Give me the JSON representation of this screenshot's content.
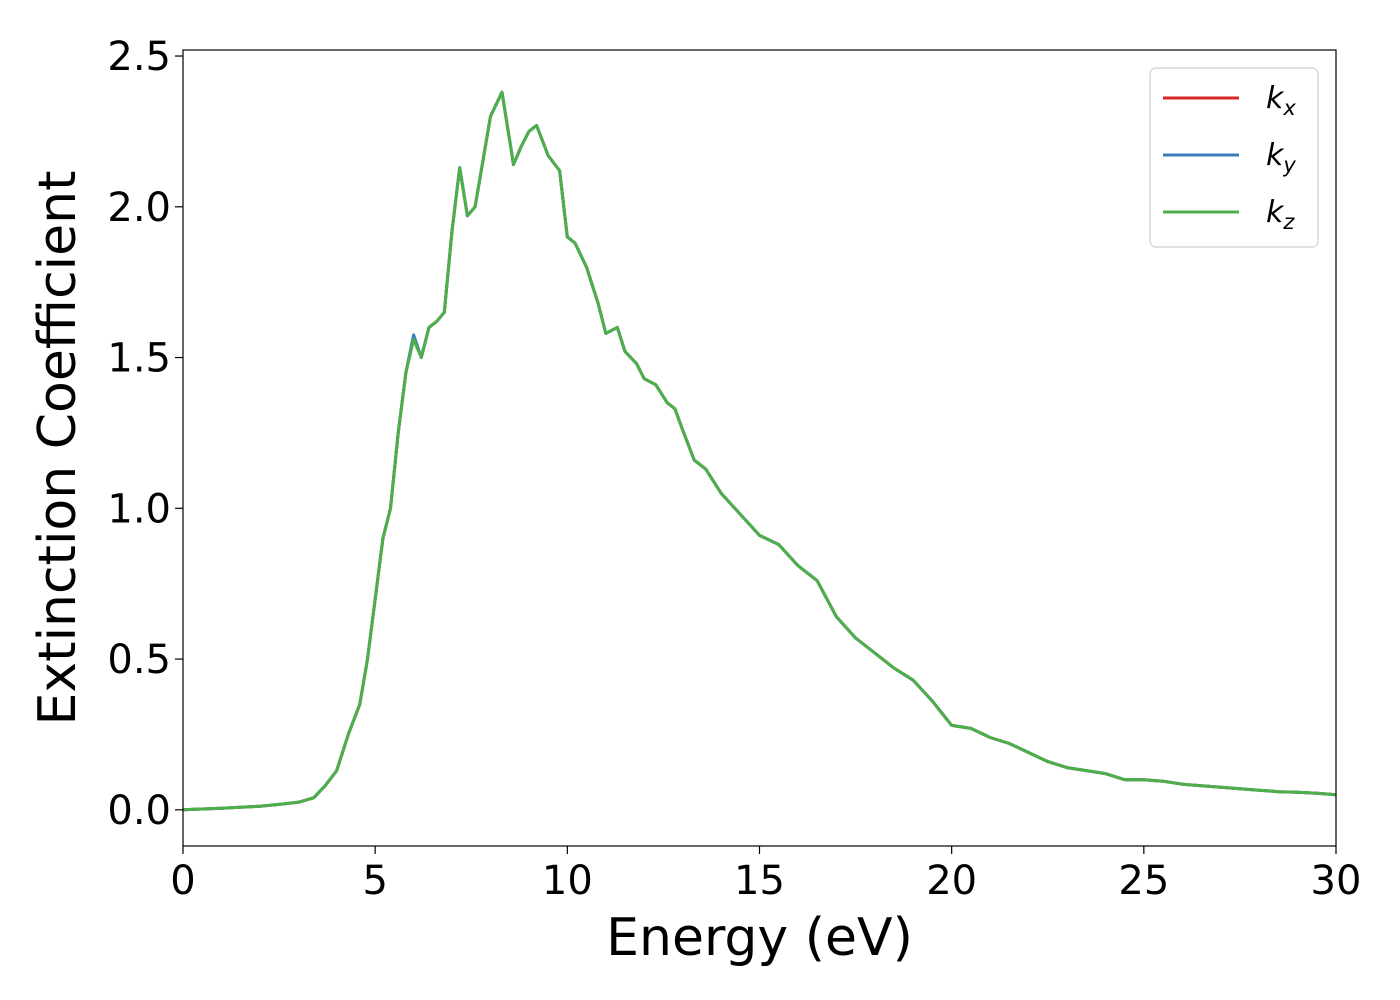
{
  "chart_data": {
    "type": "line",
    "title": "",
    "xlabel": "Energy (eV)",
    "ylabel": "Extinction Coefficient",
    "xlim": [
      0,
      30
    ],
    "ylim": [
      -0.12,
      2.52
    ],
    "xticks": [
      0,
      5,
      10,
      15,
      20,
      25,
      30
    ],
    "xtick_labels": [
      "0",
      "5",
      "10",
      "15",
      "20",
      "25",
      "30"
    ],
    "yticks": [
      0.0,
      0.5,
      1.0,
      1.5,
      2.0,
      2.5
    ],
    "ytick_labels": [
      "0.0",
      "0.5",
      "1.0",
      "1.5",
      "2.0",
      "2.5"
    ],
    "grid": false,
    "legend_position": "top-right",
    "series": [
      {
        "name": "k",
        "subscript": "x",
        "color": "#d62728",
        "x": [
          0,
          1,
          2,
          2.5,
          3,
          3.4,
          3.7,
          4.0,
          4.3,
          4.6,
          4.8,
          5.0,
          5.2,
          5.4,
          5.6,
          5.8,
          6.0,
          6.2,
          6.4,
          6.6,
          6.8,
          7.0,
          7.2,
          7.4,
          7.6,
          7.8,
          8.0,
          8.3,
          8.6,
          8.8,
          9.0,
          9.2,
          9.5,
          9.8,
          10.0,
          10.2,
          10.5,
          10.8,
          11.0,
          11.3,
          11.5,
          11.8,
          12.0,
          12.3,
          12.6,
          12.8,
          13.0,
          13.3,
          13.6,
          14.0,
          14.5,
          15.0,
          15.5,
          16.0,
          16.5,
          17.0,
          17.5,
          18.0,
          18.5,
          19.0,
          19.5,
          20.0,
          20.5,
          21.0,
          21.5,
          22.0,
          22.5,
          23.0,
          23.5,
          24.0,
          24.5,
          25.0,
          25.5,
          26.0,
          26.5,
          27.0,
          27.5,
          28.0,
          28.5,
          29.0,
          29.5,
          30.0
        ],
        "y": [
          0.0,
          0.005,
          0.012,
          0.018,
          0.025,
          0.04,
          0.08,
          0.13,
          0.25,
          0.35,
          0.5,
          0.7,
          0.9,
          1.0,
          1.25,
          1.45,
          1.57,
          1.5,
          1.6,
          1.62,
          1.65,
          1.92,
          2.13,
          1.97,
          2.0,
          2.15,
          2.3,
          2.38,
          2.14,
          2.2,
          2.25,
          2.27,
          2.17,
          2.12,
          1.9,
          1.88,
          1.8,
          1.68,
          1.58,
          1.6,
          1.52,
          1.48,
          1.43,
          1.41,
          1.35,
          1.33,
          1.26,
          1.16,
          1.13,
          1.05,
          0.98,
          0.91,
          0.88,
          0.81,
          0.76,
          0.64,
          0.57,
          0.52,
          0.47,
          0.43,
          0.36,
          0.28,
          0.27,
          0.24,
          0.22,
          0.19,
          0.16,
          0.14,
          0.13,
          0.12,
          0.1,
          0.1,
          0.095,
          0.085,
          0.08,
          0.075,
          0.07,
          0.065,
          0.06,
          0.058,
          0.055,
          0.05
        ]
      },
      {
        "name": "k",
        "subscript": "y",
        "color": "#377eb8",
        "x": [
          0,
          1,
          2,
          2.5,
          3,
          3.4,
          3.7,
          4.0,
          4.3,
          4.6,
          4.8,
          5.0,
          5.2,
          5.4,
          5.6,
          5.8,
          6.0,
          6.2,
          6.4,
          6.6,
          6.8,
          7.0,
          7.2,
          7.4,
          7.6,
          7.8,
          8.0,
          8.3,
          8.6,
          8.8,
          9.0,
          9.2,
          9.5,
          9.8,
          10.0,
          10.2,
          10.5,
          10.8,
          11.0,
          11.3,
          11.5,
          11.8,
          12.0,
          12.3,
          12.6,
          12.8,
          13.0,
          13.3,
          13.6,
          14.0,
          14.5,
          15.0,
          15.5,
          16.0,
          16.5,
          17.0,
          17.5,
          18.0,
          18.5,
          19.0,
          19.5,
          20.0,
          20.5,
          21.0,
          21.5,
          22.0,
          22.5,
          23.0,
          23.5,
          24.0,
          24.5,
          25.0,
          25.5,
          26.0,
          26.5,
          27.0,
          27.5,
          28.0,
          28.5,
          29.0,
          29.5,
          30.0
        ],
        "y": [
          0.0,
          0.005,
          0.012,
          0.018,
          0.025,
          0.04,
          0.08,
          0.13,
          0.25,
          0.35,
          0.5,
          0.7,
          0.9,
          1.0,
          1.25,
          1.45,
          1.575,
          1.5,
          1.6,
          1.62,
          1.65,
          1.92,
          2.13,
          1.97,
          2.0,
          2.15,
          2.3,
          2.38,
          2.14,
          2.2,
          2.25,
          2.27,
          2.17,
          2.12,
          1.9,
          1.88,
          1.8,
          1.68,
          1.58,
          1.6,
          1.52,
          1.48,
          1.43,
          1.41,
          1.35,
          1.33,
          1.26,
          1.16,
          1.13,
          1.05,
          0.98,
          0.91,
          0.88,
          0.81,
          0.76,
          0.64,
          0.57,
          0.52,
          0.47,
          0.43,
          0.36,
          0.28,
          0.27,
          0.24,
          0.22,
          0.19,
          0.16,
          0.14,
          0.13,
          0.12,
          0.1,
          0.1,
          0.095,
          0.085,
          0.08,
          0.075,
          0.07,
          0.065,
          0.06,
          0.058,
          0.055,
          0.05
        ]
      },
      {
        "name": "k",
        "subscript": "z",
        "color": "#4daf4a",
        "x": [
          0,
          1,
          2,
          2.5,
          3,
          3.4,
          3.7,
          4.0,
          4.3,
          4.6,
          4.8,
          5.0,
          5.2,
          5.4,
          5.6,
          5.8,
          6.0,
          6.2,
          6.4,
          6.6,
          6.8,
          7.0,
          7.2,
          7.4,
          7.6,
          7.8,
          8.0,
          8.3,
          8.6,
          8.8,
          9.0,
          9.2,
          9.5,
          9.8,
          10.0,
          10.2,
          10.5,
          10.8,
          11.0,
          11.3,
          11.5,
          11.8,
          12.0,
          12.3,
          12.6,
          12.8,
          13.0,
          13.3,
          13.6,
          14.0,
          14.5,
          15.0,
          15.5,
          16.0,
          16.5,
          17.0,
          17.5,
          18.0,
          18.5,
          19.0,
          19.5,
          20.0,
          20.5,
          21.0,
          21.5,
          22.0,
          22.5,
          23.0,
          23.5,
          24.0,
          24.5,
          25.0,
          25.5,
          26.0,
          26.5,
          27.0,
          27.5,
          28.0,
          28.5,
          29.0,
          29.5,
          30.0
        ],
        "y": [
          0.0,
          0.005,
          0.012,
          0.018,
          0.025,
          0.04,
          0.08,
          0.13,
          0.25,
          0.35,
          0.5,
          0.7,
          0.9,
          1.0,
          1.25,
          1.45,
          1.56,
          1.5,
          1.6,
          1.62,
          1.65,
          1.92,
          2.13,
          1.97,
          2.0,
          2.15,
          2.3,
          2.38,
          2.14,
          2.2,
          2.25,
          2.27,
          2.17,
          2.12,
          1.9,
          1.88,
          1.8,
          1.68,
          1.58,
          1.6,
          1.52,
          1.48,
          1.43,
          1.41,
          1.35,
          1.33,
          1.26,
          1.16,
          1.13,
          1.05,
          0.98,
          0.91,
          0.88,
          0.81,
          0.76,
          0.64,
          0.57,
          0.52,
          0.47,
          0.43,
          0.36,
          0.28,
          0.27,
          0.24,
          0.22,
          0.19,
          0.16,
          0.14,
          0.13,
          0.12,
          0.1,
          0.1,
          0.095,
          0.085,
          0.08,
          0.075,
          0.07,
          0.065,
          0.06,
          0.058,
          0.055,
          0.05
        ]
      }
    ]
  }
}
